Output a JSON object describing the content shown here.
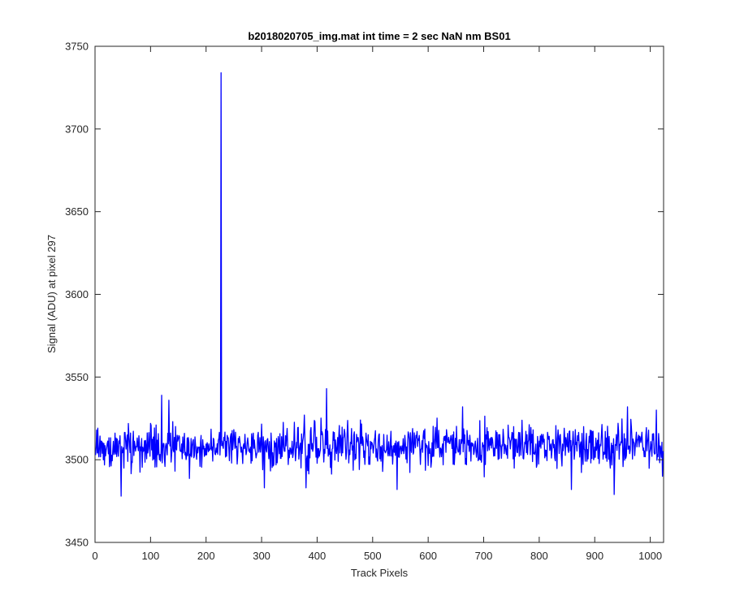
{
  "chart_data": {
    "type": "line",
    "title": "b2018020705_img.mat int time = 2 sec  NaN nm BS01",
    "xlabel": "Track Pixels",
    "ylabel": "Signal (ADU) at pixel 297",
    "xlim": [
      0,
      1024
    ],
    "ylim": [
      3450,
      3750
    ],
    "xticks": [
      0,
      100,
      200,
      300,
      400,
      500,
      600,
      700,
      800,
      900,
      1000
    ],
    "yticks": [
      3450,
      3500,
      3550,
      3600,
      3650,
      3700,
      3750
    ],
    "grid": false,
    "legend": "none",
    "series_color": "#0000ff",
    "series": [
      {
        "generator": "noise",
        "x_start": 1,
        "x_end": 1024,
        "baseline": 3508,
        "amplitude": 9,
        "seed": 297,
        "features": [
          {
            "x": 227,
            "y": 3734
          },
          {
            "x": 417,
            "y": 3543
          },
          {
            "x": 120,
            "y": 3539
          },
          {
            "x": 133,
            "y": 3536
          },
          {
            "x": 47,
            "y": 3478
          },
          {
            "x": 935,
            "y": 3479
          },
          {
            "x": 544,
            "y": 3482
          },
          {
            "x": 305,
            "y": 3483
          },
          {
            "x": 380,
            "y": 3483
          },
          {
            "x": 858,
            "y": 3482
          },
          {
            "x": 959,
            "y": 3532
          },
          {
            "x": 1011,
            "y": 3530
          },
          {
            "x": 662,
            "y": 3532
          },
          {
            "x": 1022,
            "y": 3490
          }
        ]
      }
    ]
  }
}
